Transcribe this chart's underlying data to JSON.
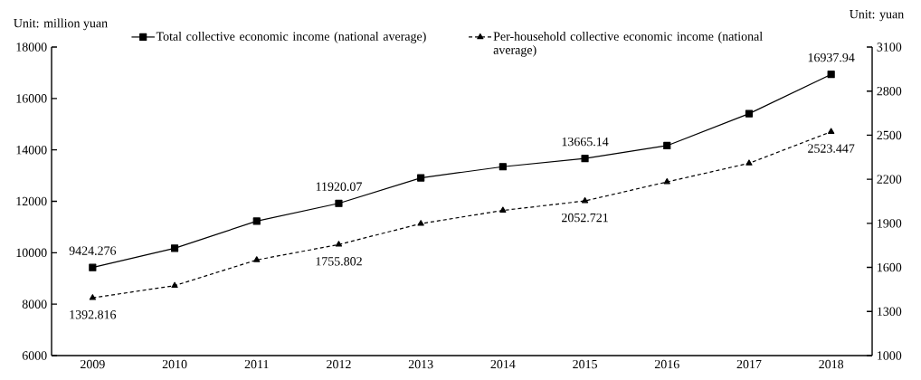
{
  "chart_data": {
    "type": "line",
    "categories": [
      "2009",
      "2010",
      "2011",
      "2012",
      "2013",
      "2014",
      "2015",
      "2016",
      "2017",
      "2018"
    ],
    "ylabel": "Unit: million yuan",
    "y2label": "Unit: yuan",
    "ylim": [
      6000,
      18000
    ],
    "yticks": [
      6000,
      8000,
      10000,
      12000,
      14000,
      16000,
      18000
    ],
    "y2lim": [
      1000,
      3100
    ],
    "y2ticks": [
      1000,
      1300,
      1600,
      1900,
      2200,
      2500,
      2800,
      3100
    ],
    "legend": "top",
    "grid": false,
    "series": [
      {
        "name": "Total collective economic income (national average)",
        "color": "#000000",
        "marker": "square",
        "line_style": "solid",
        "values": [
          9424.276,
          10176,
          11229,
          11920.07,
          12913,
          13346,
          13665.14,
          14166,
          15409,
          16937.94
        ],
        "value_labels": [
          "9424.276",
          null,
          null,
          "11920.07",
          null,
          null,
          "13665.14",
          null,
          null,
          "16937.94"
        ]
      },
      {
        "name": "Per-household collective economic income (national average)",
        "color": "#000000",
        "marker": "triangle",
        "line_style": "dashed",
        "axis": "y2",
        "values": [
          1392.816,
          1476,
          1651,
          1755.802,
          1898,
          1988,
          2052.721,
          2182,
          2309,
          2523.447
        ],
        "value_labels": [
          "1392.816",
          null,
          null,
          "1755.802",
          null,
          null,
          "2052.721",
          null,
          null,
          "2523.447"
        ]
      }
    ]
  }
}
